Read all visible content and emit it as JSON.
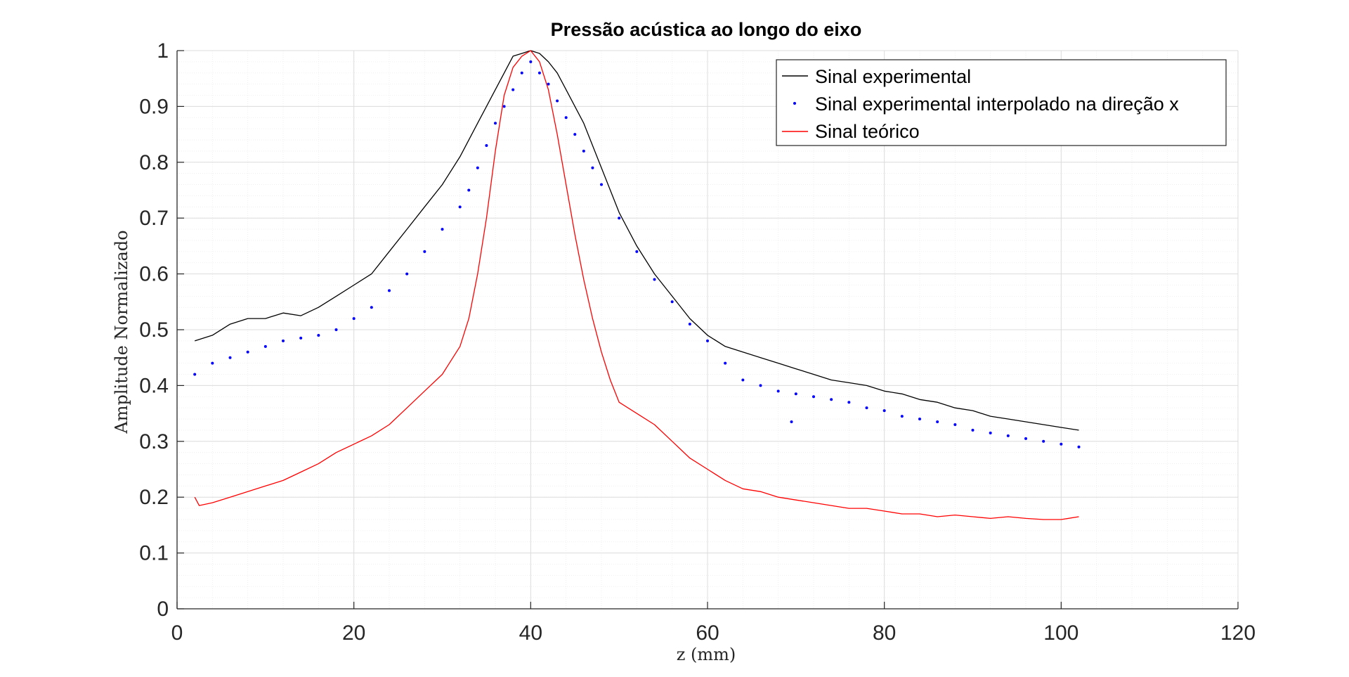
{
  "chart_data": {
    "type": "line",
    "title": "Pressão acústica ao longo do eixo",
    "xlabel": "z (mm)",
    "ylabel": "Amplitude Normalizado",
    "xlim": [
      0,
      120
    ],
    "ylim": [
      0,
      1
    ],
    "x_ticks": [
      0,
      20,
      40,
      60,
      80,
      100,
      120
    ],
    "y_ticks": [
      0,
      0.1,
      0.2,
      0.3,
      0.4,
      0.5,
      0.6,
      0.7,
      0.8,
      0.9,
      1
    ],
    "grid": true,
    "minor_grid": true,
    "legend_position": "top-right",
    "series": [
      {
        "name": "Sinal experimental",
        "style": "line",
        "color": "#000000",
        "x": [
          2,
          4,
          6,
          8,
          10,
          12,
          14,
          16,
          18,
          20,
          22,
          24,
          26,
          28,
          30,
          32,
          34,
          35,
          36,
          37,
          38,
          39,
          40,
          41,
          42,
          43,
          44,
          46,
          48,
          50,
          52,
          54,
          56,
          58,
          60,
          62,
          64,
          66,
          68,
          70,
          72,
          74,
          76,
          78,
          80,
          82,
          84,
          86,
          88,
          90,
          92,
          94,
          96,
          98,
          100,
          102
        ],
        "y": [
          0.48,
          0.49,
          0.51,
          0.52,
          0.52,
          0.53,
          0.525,
          0.54,
          0.56,
          0.58,
          0.6,
          0.64,
          0.68,
          0.72,
          0.76,
          0.81,
          0.87,
          0.9,
          0.93,
          0.96,
          0.99,
          0.995,
          1.0,
          0.995,
          0.98,
          0.96,
          0.93,
          0.87,
          0.79,
          0.71,
          0.65,
          0.6,
          0.56,
          0.52,
          0.49,
          0.47,
          0.46,
          0.45,
          0.44,
          0.43,
          0.42,
          0.41,
          0.405,
          0.4,
          0.39,
          0.385,
          0.375,
          0.37,
          0.36,
          0.355,
          0.345,
          0.34,
          0.335,
          0.33,
          0.325,
          0.32
        ]
      },
      {
        "name": "Sinal experimental interpolado na direção x",
        "style": "dots",
        "color": "#0000ff",
        "x": [
          2,
          4,
          6,
          8,
          10,
          12,
          14,
          16,
          18,
          20,
          22,
          24,
          26,
          28,
          30,
          32,
          33,
          34,
          35,
          36,
          37,
          38,
          39,
          40,
          41,
          42,
          43,
          44,
          45,
          46,
          47,
          48,
          50,
          52,
          54,
          56,
          58,
          60,
          62,
          64,
          66,
          68,
          69.5,
          70,
          72,
          74,
          76,
          78,
          80,
          82,
          84,
          86,
          88,
          90,
          92,
          94,
          96,
          98,
          100,
          102
        ],
        "y": [
          0.42,
          0.44,
          0.45,
          0.46,
          0.47,
          0.48,
          0.485,
          0.49,
          0.5,
          0.52,
          0.54,
          0.57,
          0.6,
          0.64,
          0.68,
          0.72,
          0.75,
          0.79,
          0.83,
          0.87,
          0.9,
          0.93,
          0.96,
          0.98,
          0.96,
          0.94,
          0.91,
          0.88,
          0.85,
          0.82,
          0.79,
          0.76,
          0.7,
          0.64,
          0.59,
          0.55,
          0.51,
          0.48,
          0.44,
          0.41,
          0.4,
          0.39,
          0.335,
          0.385,
          0.38,
          0.375,
          0.37,
          0.36,
          0.355,
          0.345,
          0.34,
          0.335,
          0.33,
          0.32,
          0.315,
          0.31,
          0.305,
          0.3,
          0.295,
          0.29
        ]
      },
      {
        "name": "Sinal teórico",
        "style": "line",
        "color": "#ff0000",
        "x": [
          2,
          2.5,
          4,
          6,
          8,
          10,
          12,
          14,
          16,
          18,
          20,
          22,
          24,
          26,
          28,
          30,
          32,
          33,
          34,
          35,
          36,
          37,
          38,
          39,
          40,
          41,
          42,
          43,
          44,
          45,
          46,
          47,
          48,
          49,
          50,
          52,
          54,
          56,
          58,
          60,
          62,
          64,
          66,
          68,
          70,
          72,
          74,
          76,
          78,
          80,
          82,
          84,
          86,
          88,
          90,
          92,
          94,
          96,
          98,
          100,
          102
        ],
        "y": [
          0.2,
          0.185,
          0.19,
          0.2,
          0.21,
          0.22,
          0.23,
          0.245,
          0.26,
          0.28,
          0.295,
          0.31,
          0.33,
          0.36,
          0.39,
          0.42,
          0.47,
          0.52,
          0.6,
          0.7,
          0.82,
          0.92,
          0.97,
          0.99,
          1.0,
          0.98,
          0.93,
          0.85,
          0.76,
          0.67,
          0.59,
          0.52,
          0.46,
          0.41,
          0.37,
          0.35,
          0.33,
          0.3,
          0.27,
          0.25,
          0.23,
          0.215,
          0.21,
          0.2,
          0.195,
          0.19,
          0.185,
          0.18,
          0.18,
          0.175,
          0.17,
          0.17,
          0.165,
          0.168,
          0.165,
          0.162,
          0.165,
          0.162,
          0.16,
          0.16,
          0.165
        ]
      }
    ]
  }
}
